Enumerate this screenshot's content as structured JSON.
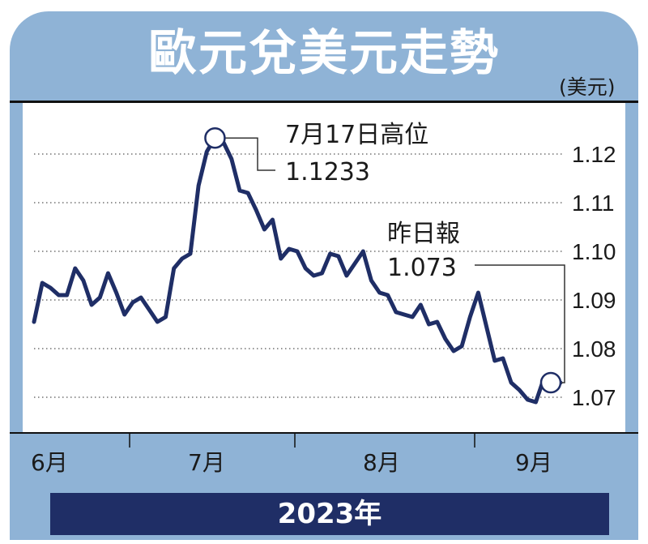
{
  "title": "歐元兌美元走勢",
  "unit": "(美元)",
  "year": "2023年",
  "chart_data": {
    "type": "line",
    "title": "歐元兌美元走勢",
    "ylabel": "(美元)",
    "xlabel": "2023年",
    "ylim": [
      1.066,
      1.1275
    ],
    "yticks": [
      "1.12",
      "1.11",
      "1.10",
      "1.09",
      "1.08",
      "1.07"
    ],
    "grid": "horizontal dotted",
    "months": [
      "6月",
      "7月",
      "8月",
      "9月"
    ],
    "series": [
      {
        "values": [
          1.0855,
          1.0935,
          1.0925,
          1.091,
          1.091,
          1.0965,
          1.094,
          1.089,
          1.0905,
          1.0955,
          1.0915,
          1.087,
          1.0895,
          1.0905,
          1.088,
          1.0855,
          1.0865,
          1.0965,
          1.0985,
          1.0995,
          1.1135,
          1.1205,
          1.1233,
          1.1225,
          1.119,
          1.1125,
          1.112,
          1.1085,
          1.1045,
          1.1065,
          1.0985,
          1.1005,
          1.1,
          1.0965,
          1.095,
          1.0955,
          1.0995,
          1.099,
          1.095,
          1.0975,
          1.1,
          1.094,
          1.0915,
          1.091,
          1.0875,
          1.087,
          1.0865,
          1.089,
          1.085,
          1.0855,
          1.082,
          1.0795,
          1.0805,
          1.0865,
          1.0915,
          1.0845,
          1.0775,
          1.078,
          1.073,
          1.0715,
          1.0695,
          1.069,
          1.074,
          1.0725,
          1.073
        ]
      }
    ],
    "annotations": [
      {
        "label": "7月17日高位",
        "value": "1.1233"
      },
      {
        "label": "昨日報",
        "value": "1.073"
      }
    ]
  }
}
